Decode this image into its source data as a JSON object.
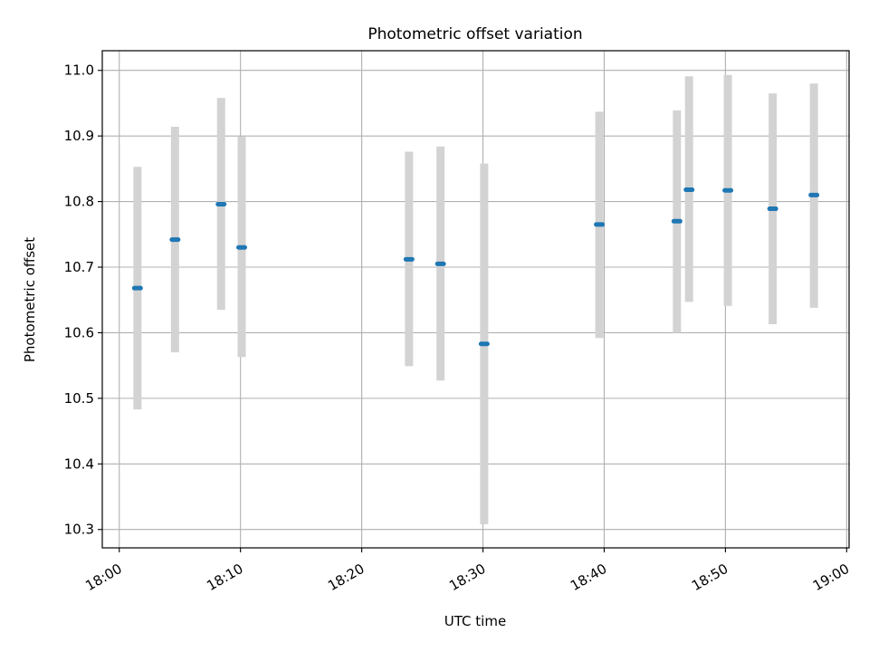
{
  "chart_data": {
    "type": "scatter",
    "title": "Photometric offset variation",
    "xlabel": "UTC time",
    "ylabel": "Photometric offset",
    "x_axis": {
      "unit": "minutes after 18:00 UTC",
      "range": [
        -1.4,
        60.2
      ],
      "ticks": [
        0,
        10,
        20,
        30,
        40,
        50,
        60
      ],
      "tick_labels": [
        "18:00",
        "18:10",
        "18:20",
        "18:30",
        "18:40",
        "18:50",
        "19:00"
      ],
      "tick_label_rotation": "30°"
    },
    "y_axis": {
      "range": [
        10.272,
        11.03
      ],
      "ticks": [
        10.3,
        10.4,
        10.5,
        10.6,
        10.7,
        10.8,
        10.9,
        11.0
      ],
      "tick_labels": [
        "10.3",
        "10.4",
        "10.5",
        "10.6",
        "10.7",
        "10.8",
        "10.9",
        "11.0"
      ]
    },
    "grid": true,
    "colors": {
      "point": "#1f77b4",
      "errorbar": "#d3d3d3",
      "grid": "#b0b0b0"
    },
    "series": [
      {
        "points": [
          {
            "time": "18:01:30",
            "y": 10.668,
            "ylo": 10.483,
            "yhi": 10.853
          },
          {
            "time": "18:04:36",
            "y": 10.742,
            "ylo": 10.57,
            "yhi": 10.914
          },
          {
            "time": "18:08:24",
            "y": 10.796,
            "ylo": 10.635,
            "yhi": 10.958
          },
          {
            "time": "18:10:06",
            "y": 10.73,
            "ylo": 10.563,
            "yhi": 10.899
          },
          {
            "time": "18:23:54",
            "y": 10.712,
            "ylo": 10.549,
            "yhi": 10.876
          },
          {
            "time": "18:26:30",
            "y": 10.705,
            "ylo": 10.527,
            "yhi": 10.884
          },
          {
            "time": "18:30:06",
            "y": 10.583,
            "ylo": 10.308,
            "yhi": 10.858
          },
          {
            "time": "18:39:36",
            "y": 10.765,
            "ylo": 10.592,
            "yhi": 10.937
          },
          {
            "time": "18:46:00",
            "y": 10.77,
            "ylo": 10.6,
            "yhi": 10.939
          },
          {
            "time": "18:47:00",
            "y": 10.818,
            "ylo": 10.647,
            "yhi": 10.991
          },
          {
            "time": "18:50:12",
            "y": 10.817,
            "ylo": 10.641,
            "yhi": 10.993
          },
          {
            "time": "18:53:54",
            "y": 10.789,
            "ylo": 10.613,
            "yhi": 10.965
          },
          {
            "time": "18:57:18",
            "y": 10.81,
            "ylo": 10.638,
            "yhi": 10.98
          }
        ]
      }
    ]
  }
}
